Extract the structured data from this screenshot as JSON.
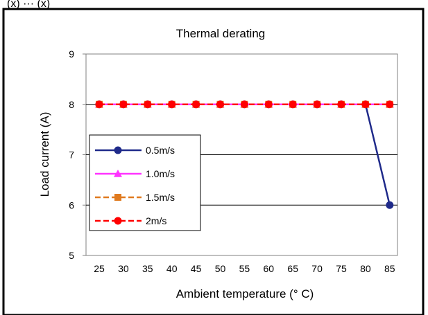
{
  "header_fragment": "(x) ··· (x)",
  "chart_data": {
    "type": "line",
    "title": "Thermal derating",
    "xlabel": "Ambient temperature (°  C)",
    "ylabel": "Load current (A)",
    "categories": [
      "25",
      "30",
      "35",
      "40",
      "45",
      "50",
      "55",
      "60",
      "65",
      "70",
      "75",
      "80",
      "85"
    ],
    "ylim": [
      5,
      9
    ],
    "yticks": [
      "5",
      "6",
      "7",
      "8",
      "9"
    ],
    "grid": "horizontal at 6, 7, 8",
    "legend_position": "left-middle",
    "series": [
      {
        "name": "0.5m/s",
        "color": "#1f2a8a",
        "marker": "circle",
        "dash": "solid",
        "values": [
          8,
          8,
          8,
          8,
          8,
          8,
          8,
          8,
          8,
          8,
          8,
          8,
          6
        ]
      },
      {
        "name": "1.0m/s",
        "color": "#ff33ff",
        "marker": "triangle",
        "dash": "solid",
        "values": [
          8,
          8,
          8,
          8,
          8,
          8,
          8,
          8,
          8,
          8,
          8,
          8,
          8
        ]
      },
      {
        "name": "1.5m/s",
        "color": "#e07a1f",
        "marker": "square",
        "dash": "dashed",
        "values": [
          8,
          8,
          8,
          8,
          8,
          8,
          8,
          8,
          8,
          8,
          8,
          8,
          8
        ]
      },
      {
        "name": "2m/s",
        "color": "#ff0000",
        "marker": "circle",
        "dash": "dashed",
        "values": [
          8,
          8,
          8,
          8,
          8,
          8,
          8,
          8,
          8,
          8,
          8,
          8,
          8
        ]
      }
    ]
  }
}
